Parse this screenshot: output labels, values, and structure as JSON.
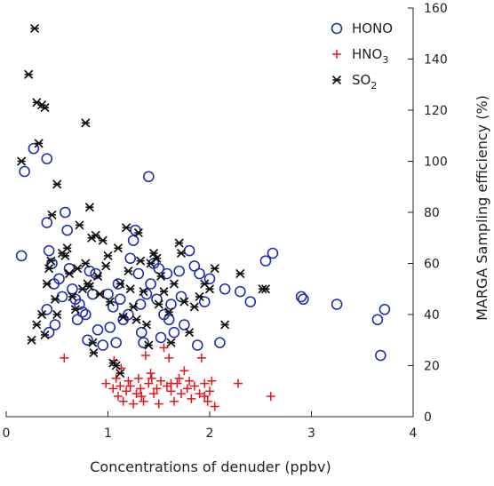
{
  "chart_data": {
    "type": "scatter",
    "title": "",
    "xlabel": "Concentrations of denuder (ppbv)",
    "ylabel": "MARGA Sampling efficiency (%)",
    "xlim": [
      0,
      4
    ],
    "ylim": [
      0,
      160
    ],
    "x_ticks": [
      "0",
      "1",
      "2",
      "3",
      "4"
    ],
    "y_ticks": [
      "0",
      "20",
      "40",
      "60",
      "80",
      "100",
      "120",
      "140",
      "160"
    ],
    "y_axis_side": "right",
    "grid": false,
    "legend_position": "top-right",
    "series": [
      {
        "name": "HONO",
        "label_base": "HONO",
        "label_sub": "",
        "marker": "open-circle",
        "color": "#1f2fa8",
        "points": [
          [
            0.15,
            63
          ],
          [
            0.18,
            96
          ],
          [
            0.27,
            105
          ],
          [
            0.4,
            101
          ],
          [
            0.4,
            76
          ],
          [
            0.42,
            65
          ],
          [
            0.45,
            60
          ],
          [
            0.47,
            52
          ],
          [
            0.4,
            42
          ],
          [
            0.42,
            33
          ],
          [
            0.48,
            36
          ],
          [
            0.52,
            54
          ],
          [
            0.55,
            47
          ],
          [
            0.58,
            80
          ],
          [
            0.6,
            73
          ],
          [
            0.62,
            58
          ],
          [
            0.65,
            50
          ],
          [
            0.68,
            46
          ],
          [
            0.7,
            38
          ],
          [
            0.72,
            44
          ],
          [
            0.75,
            41
          ],
          [
            0.78,
            40
          ],
          [
            0.8,
            30
          ],
          [
            0.82,
            57
          ],
          [
            0.85,
            48
          ],
          [
            0.88,
            56
          ],
          [
            0.9,
            34
          ],
          [
            0.95,
            28
          ],
          [
            1.0,
            48
          ],
          [
            1.02,
            35
          ],
          [
            1.05,
            43
          ],
          [
            1.08,
            29
          ],
          [
            1.1,
            52
          ],
          [
            1.12,
            46
          ],
          [
            1.15,
            38
          ],
          [
            1.2,
            40
          ],
          [
            1.22,
            62
          ],
          [
            1.25,
            69
          ],
          [
            1.27,
            73
          ],
          [
            1.3,
            56
          ],
          [
            1.32,
            44
          ],
          [
            1.33,
            33
          ],
          [
            1.35,
            29
          ],
          [
            1.38,
            48
          ],
          [
            1.4,
            94
          ],
          [
            1.42,
            52
          ],
          [
            1.45,
            60
          ],
          [
            1.48,
            46
          ],
          [
            1.5,
            58
          ],
          [
            1.52,
            31
          ],
          [
            1.55,
            40
          ],
          [
            1.58,
            56
          ],
          [
            1.6,
            38
          ],
          [
            1.62,
            44
          ],
          [
            1.65,
            33
          ],
          [
            1.7,
            57
          ],
          [
            1.72,
            47
          ],
          [
            1.75,
            36
          ],
          [
            1.8,
            65
          ],
          [
            1.85,
            59
          ],
          [
            1.88,
            28
          ],
          [
            1.9,
            56
          ],
          [
            1.95,
            45
          ],
          [
            2.0,
            54
          ],
          [
            2.1,
            29
          ],
          [
            2.15,
            50
          ],
          [
            2.3,
            49
          ],
          [
            2.4,
            45
          ],
          [
            2.55,
            61
          ],
          [
            2.62,
            64
          ],
          [
            2.9,
            47
          ],
          [
            2.92,
            46
          ],
          [
            3.25,
            44
          ],
          [
            3.65,
            38
          ],
          [
            3.68,
            24
          ],
          [
            3.72,
            42
          ]
        ]
      },
      {
        "name": "HNO3",
        "label_base": "HNO",
        "label_sub": "3",
        "marker": "plus",
        "color": "#e8141c",
        "points": [
          [
            0.57,
            23
          ],
          [
            0.98,
            13
          ],
          [
            1.05,
            11
          ],
          [
            1.08,
            15
          ],
          [
            1.1,
            8
          ],
          [
            1.12,
            12
          ],
          [
            1.15,
            6
          ],
          [
            1.18,
            10
          ],
          [
            1.2,
            14
          ],
          [
            1.22,
            12
          ],
          [
            1.25,
            5
          ],
          [
            1.28,
            9
          ],
          [
            1.3,
            15
          ],
          [
            1.32,
            11
          ],
          [
            1.35,
            6
          ],
          [
            1.37,
            24
          ],
          [
            1.4,
            13
          ],
          [
            1.42,
            17
          ],
          [
            1.45,
            9
          ],
          [
            1.48,
            11
          ],
          [
            1.5,
            5
          ],
          [
            1.52,
            14
          ],
          [
            1.55,
            27
          ],
          [
            1.58,
            12
          ],
          [
            1.6,
            23
          ],
          [
            1.62,
            10
          ],
          [
            1.65,
            6
          ],
          [
            1.68,
            13
          ],
          [
            1.7,
            15
          ],
          [
            1.72,
            9
          ],
          [
            1.75,
            18
          ],
          [
            1.78,
            11
          ],
          [
            1.8,
            14
          ],
          [
            1.82,
            7
          ],
          [
            1.85,
            12
          ],
          [
            1.9,
            9
          ],
          [
            1.92,
            23
          ],
          [
            1.95,
            13
          ],
          [
            1.98,
            6
          ],
          [
            2.0,
            10
          ],
          [
            2.02,
            14
          ],
          [
            2.05,
            4
          ],
          [
            2.28,
            13
          ],
          [
            2.6,
            8
          ],
          [
            1.06,
            22
          ],
          [
            1.13,
            19
          ],
          [
            1.33,
            8
          ],
          [
            1.43,
            15
          ],
          [
            1.62,
            13
          ],
          [
            1.95,
            8
          ]
        ]
      },
      {
        "name": "SO2",
        "label_base": "SO",
        "label_sub": "2",
        "marker": "asterisk",
        "color": "#111111",
        "points": [
          [
            0.15,
            100
          ],
          [
            0.22,
            134
          ],
          [
            0.28,
            152
          ],
          [
            0.3,
            123
          ],
          [
            0.32,
            107
          ],
          [
            0.35,
            122
          ],
          [
            0.38,
            121
          ],
          [
            0.25,
            30
          ],
          [
            0.3,
            36
          ],
          [
            0.35,
            40
          ],
          [
            0.38,
            32
          ],
          [
            0.4,
            52
          ],
          [
            0.42,
            58
          ],
          [
            0.44,
            61
          ],
          [
            0.45,
            79
          ],
          [
            0.5,
            91
          ],
          [
            0.5,
            40
          ],
          [
            0.55,
            64
          ],
          [
            0.58,
            63
          ],
          [
            0.6,
            66
          ],
          [
            0.62,
            56
          ],
          [
            0.65,
            47
          ],
          [
            0.68,
            42
          ],
          [
            0.7,
            58
          ],
          [
            0.72,
            75
          ],
          [
            0.75,
            50
          ],
          [
            0.78,
            115
          ],
          [
            0.78,
            60
          ],
          [
            0.8,
            52
          ],
          [
            0.82,
            82
          ],
          [
            0.84,
            70
          ],
          [
            0.85,
            29
          ],
          [
            0.86,
            25
          ],
          [
            0.88,
            71
          ],
          [
            0.9,
            55
          ],
          [
            0.92,
            48
          ],
          [
            0.95,
            69
          ],
          [
            0.98,
            59
          ],
          [
            1.0,
            63
          ],
          [
            1.02,
            45
          ],
          [
            1.05,
            21
          ],
          [
            1.08,
            20
          ],
          [
            1.1,
            66
          ],
          [
            1.12,
            52
          ],
          [
            1.15,
            39
          ],
          [
            1.18,
            74
          ],
          [
            1.2,
            57
          ],
          [
            1.22,
            50
          ],
          [
            1.25,
            43
          ],
          [
            1.28,
            38
          ],
          [
            1.3,
            72
          ],
          [
            1.32,
            61
          ],
          [
            1.35,
            49
          ],
          [
            1.38,
            36
          ],
          [
            1.4,
            28
          ],
          [
            1.42,
            60
          ],
          [
            1.45,
            64
          ],
          [
            1.48,
            62
          ],
          [
            1.5,
            44
          ],
          [
            1.52,
            55
          ],
          [
            1.55,
            49
          ],
          [
            1.6,
            41
          ],
          [
            1.62,
            29
          ],
          [
            1.65,
            52
          ],
          [
            1.7,
            68
          ],
          [
            1.72,
            64
          ],
          [
            1.75,
            45
          ],
          [
            1.8,
            33
          ],
          [
            1.85,
            43
          ],
          [
            1.9,
            47
          ],
          [
            1.95,
            52
          ],
          [
            2.0,
            50
          ],
          [
            2.05,
            58
          ],
          [
            2.15,
            36
          ],
          [
            2.3,
            56
          ],
          [
            2.52,
            50
          ],
          [
            2.55,
            50
          ],
          [
            1.12,
            17
          ],
          [
            0.48,
            46
          ],
          [
            0.82,
            51
          ]
        ]
      }
    ]
  }
}
